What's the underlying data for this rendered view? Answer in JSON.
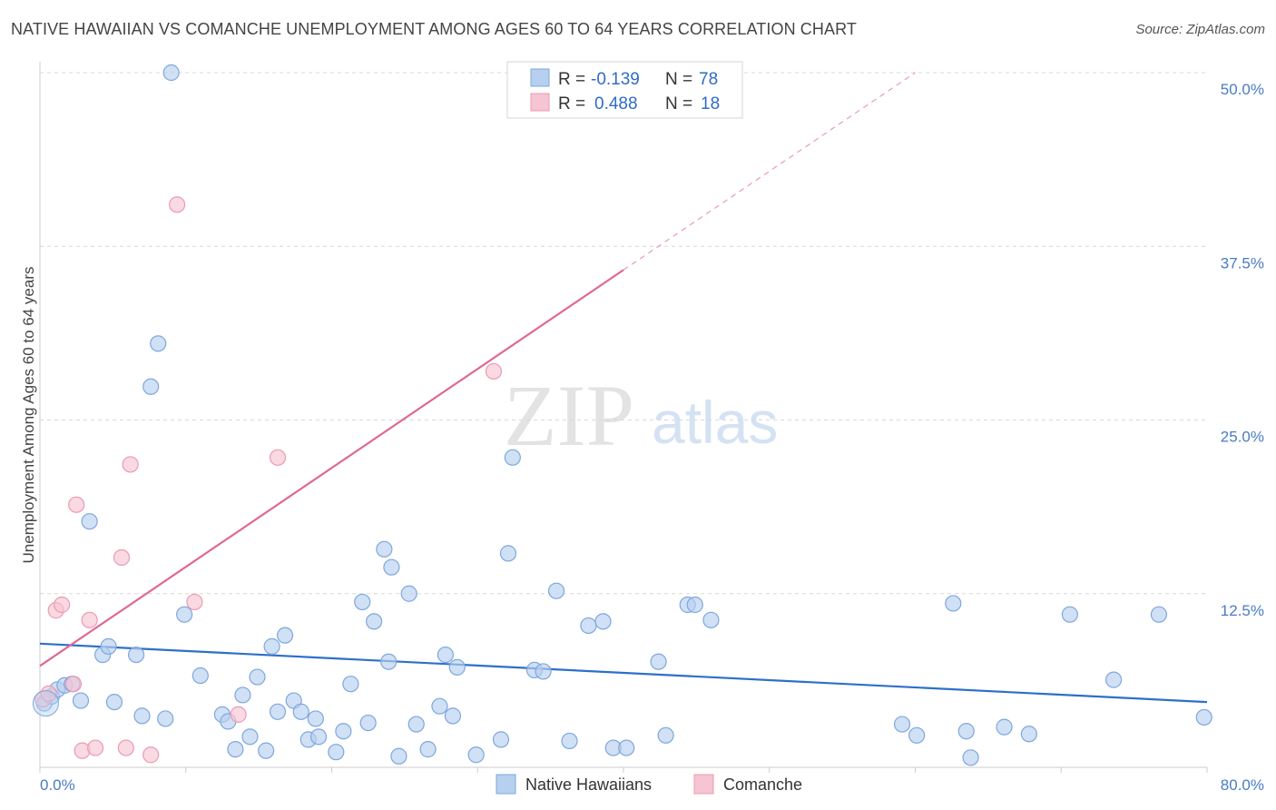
{
  "title": "NATIVE HAWAIIAN VS COMANCHE UNEMPLOYMENT AMONG AGES 60 TO 64 YEARS CORRELATION CHART",
  "source": "Source: ZipAtlas.com",
  "watermark": {
    "part1": "ZIP",
    "part2": "atlas"
  },
  "colors": {
    "blue_fill": "#b7d0ef",
    "blue_stroke": "#7ea7dc",
    "blue_line": "#2e6fcb",
    "pink_fill": "#f6c4d3",
    "pink_stroke": "#ec9ab2",
    "pink_line": "#e06890",
    "grid": "#d8d8d8"
  },
  "legend": {
    "rows": [
      {
        "r_label": "R =",
        "r_value": "-0.139",
        "n_label": "N =",
        "n_value": "78"
      },
      {
        "r_label": "R =",
        "r_value": "0.488",
        "n_label": "N =",
        "n_value": "18"
      }
    ]
  },
  "chart_data": {
    "type": "scatter",
    "title": "NATIVE HAWAIIAN VS COMANCHE UNEMPLOYMENT AMONG AGES 60 TO 64 YEARS CORRELATION CHART",
    "xlabel": "",
    "ylabel": "Unemployment Among Ages 60 to 64 years",
    "xlim": [
      0,
      80
    ],
    "ylim": [
      0,
      50
    ],
    "x_tick_labels": [
      "0.0%",
      "80.0%"
    ],
    "y_ticks": [
      12.5,
      25.0,
      37.5,
      50.0
    ],
    "y_tick_labels": [
      "12.5%",
      "25.0%",
      "37.5%",
      "50.0%"
    ],
    "grid": true,
    "series": [
      {
        "name": "Native Hawaiians",
        "r": -0.139,
        "n": 78,
        "trend": {
          "x": [
            0,
            80
          ],
          "y": [
            8.9,
            4.7
          ]
        },
        "points": [
          [
            0.3,
            4.6
          ],
          [
            0.8,
            5.1
          ],
          [
            1.2,
            5.6
          ],
          [
            1.7,
            5.9
          ],
          [
            2.2,
            6.0
          ],
          [
            2.8,
            4.8
          ],
          [
            3.4,
            17.7
          ],
          [
            4.3,
            8.1
          ],
          [
            4.7,
            8.7
          ],
          [
            5.1,
            4.7
          ],
          [
            6.6,
            8.1
          ],
          [
            7.0,
            3.7
          ],
          [
            7.6,
            27.4
          ],
          [
            8.1,
            30.5
          ],
          [
            8.6,
            3.5
          ],
          [
            9.0,
            50.0
          ],
          [
            9.9,
            11.0
          ],
          [
            11.0,
            6.6
          ],
          [
            12.5,
            3.8
          ],
          [
            12.9,
            3.3
          ],
          [
            13.4,
            1.3
          ],
          [
            13.9,
            5.2
          ],
          [
            14.4,
            2.2
          ],
          [
            14.9,
            6.5
          ],
          [
            15.5,
            1.2
          ],
          [
            15.9,
            8.7
          ],
          [
            16.3,
            4.0
          ],
          [
            16.8,
            9.5
          ],
          [
            17.4,
            4.8
          ],
          [
            17.9,
            4.0
          ],
          [
            18.4,
            2.0
          ],
          [
            18.9,
            3.5
          ],
          [
            19.1,
            2.2
          ],
          [
            20.3,
            1.1
          ],
          [
            20.8,
            2.6
          ],
          [
            21.3,
            6.0
          ],
          [
            22.1,
            11.9
          ],
          [
            22.5,
            3.2
          ],
          [
            22.9,
            10.5
          ],
          [
            23.6,
            15.7
          ],
          [
            23.9,
            7.6
          ],
          [
            24.1,
            14.4
          ],
          [
            24.6,
            0.8
          ],
          [
            25.3,
            12.5
          ],
          [
            25.8,
            3.1
          ],
          [
            26.6,
            1.3
          ],
          [
            27.4,
            4.4
          ],
          [
            27.8,
            8.1
          ],
          [
            28.3,
            3.7
          ],
          [
            28.6,
            7.2
          ],
          [
            29.9,
            0.9
          ],
          [
            31.6,
            2.0
          ],
          [
            32.1,
            15.4
          ],
          [
            32.4,
            22.3
          ],
          [
            33.9,
            7.0
          ],
          [
            34.5,
            6.9
          ],
          [
            35.4,
            12.7
          ],
          [
            36.3,
            1.9
          ],
          [
            37.6,
            10.2
          ],
          [
            38.6,
            10.5
          ],
          [
            39.3,
            1.4
          ],
          [
            40.2,
            1.4
          ],
          [
            42.4,
            7.6
          ],
          [
            42.9,
            2.3
          ],
          [
            44.4,
            11.7
          ],
          [
            44.9,
            11.7
          ],
          [
            46.0,
            10.6
          ],
          [
            59.1,
            3.1
          ],
          [
            60.1,
            2.3
          ],
          [
            62.6,
            11.8
          ],
          [
            63.5,
            2.6
          ],
          [
            63.8,
            0.7
          ],
          [
            66.1,
            2.9
          ],
          [
            67.8,
            2.4
          ],
          [
            70.6,
            11.0
          ],
          [
            73.6,
            6.3
          ],
          [
            76.7,
            11.0
          ],
          [
            79.8,
            3.6
          ]
        ]
      },
      {
        "name": "Comanche",
        "r": 0.488,
        "n": 18,
        "trend": {
          "x": [
            0,
            40
          ],
          "y": [
            7.3,
            35.8
          ]
        },
        "trend_dashed": {
          "x": [
            40,
            60
          ],
          "y": [
            35.8,
            50.0
          ]
        },
        "points": [
          [
            0.2,
            4.9
          ],
          [
            0.6,
            5.3
          ],
          [
            1.1,
            11.3
          ],
          [
            1.5,
            11.7
          ],
          [
            2.3,
            6.0
          ],
          [
            2.5,
            18.9
          ],
          [
            2.9,
            1.2
          ],
          [
            3.4,
            10.6
          ],
          [
            3.8,
            1.4
          ],
          [
            5.6,
            15.1
          ],
          [
            5.9,
            1.4
          ],
          [
            6.2,
            21.8
          ],
          [
            7.6,
            0.9
          ],
          [
            9.4,
            40.5
          ],
          [
            10.6,
            11.9
          ],
          [
            13.6,
            3.8
          ],
          [
            16.3,
            22.3
          ],
          [
            31.1,
            28.5
          ]
        ]
      }
    ]
  },
  "bottom_legend": [
    "Native Hawaiians",
    "Comanche"
  ]
}
